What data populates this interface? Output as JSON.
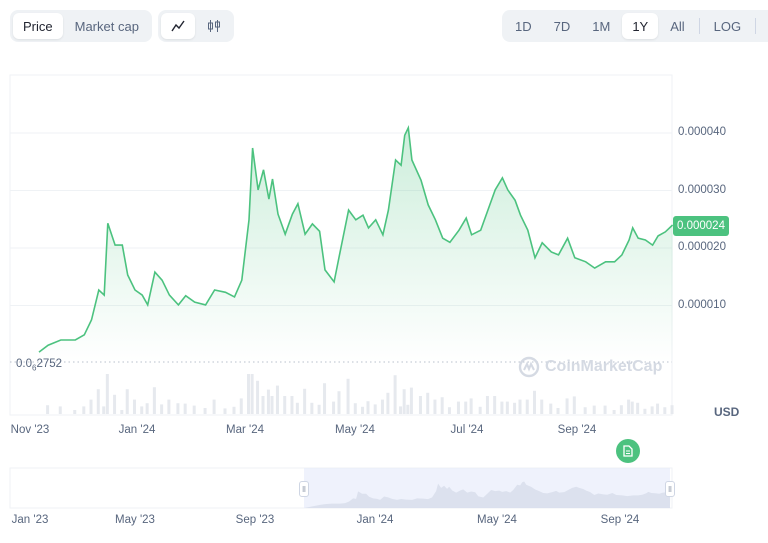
{
  "toolbar": {
    "metric_tabs": [
      {
        "label": "Price",
        "active": true
      },
      {
        "label": "Market cap",
        "active": false
      }
    ],
    "chart_type": [
      {
        "icon": "line-chart-icon",
        "active": true
      },
      {
        "icon": "candlestick-icon",
        "active": false
      }
    ],
    "ranges": [
      {
        "label": "1D"
      },
      {
        "label": "7D"
      },
      {
        "label": "1M"
      },
      {
        "label": "1Y",
        "active": true
      },
      {
        "label": "All"
      }
    ],
    "log_label": "LOG",
    "more_label": "···"
  },
  "colors": {
    "line": "#4cc27f",
    "accent": "#4cc27f",
    "navigator_selection": "#e8ecfb"
  },
  "watermark": "CoinMarketCap",
  "current_price": "0.000024",
  "min_price_label": {
    "prefix": "0.0",
    "zeros": "6",
    "digits": "2752"
  },
  "currency": "USD",
  "chart_data": {
    "type": "area",
    "yticks": [
      "0.000010",
      "0.000020",
      "0.000030",
      "0.000040"
    ],
    "ytick_values": [
      1e-05,
      2e-05,
      3e-05,
      4e-05
    ],
    "xticks": [
      "Nov '23",
      "Jan '24",
      "Mar '24",
      "May '24",
      "Jul '24",
      "Sep '24"
    ],
    "navigator_xticks": [
      "Jan '23",
      "May '23",
      "Sep '23",
      "Jan '24",
      "May '24",
      "Sep '24"
    ],
    "grid": true,
    "ylim": [
      0,
      5e-05
    ],
    "points": [
      [
        "2023-11-06",
        1.9e-06
      ],
      [
        "2023-11-11",
        3.1e-06
      ],
      [
        "2023-11-18",
        4e-06
      ],
      [
        "2023-11-26",
        4e-06
      ],
      [
        "2023-12-01",
        4.9e-06
      ],
      [
        "2023-12-05",
        7.5e-06
      ],
      [
        "2023-12-09",
        1.27e-05
      ],
      [
        "2023-12-12",
        1.18e-05
      ],
      [
        "2023-12-14",
        2.43e-05
      ],
      [
        "2023-12-18",
        2.05e-05
      ],
      [
        "2023-12-22",
        2.05e-05
      ],
      [
        "2023-12-25",
        1.53e-05
      ],
      [
        "2023-12-29",
        1.27e-05
      ],
      [
        "2024-01-02",
        1.18e-05
      ],
      [
        "2024-01-05",
        1.01e-05
      ],
      [
        "2024-01-09",
        1.58e-05
      ],
      [
        "2024-01-13",
        1.44e-05
      ],
      [
        "2024-01-17",
        1.18e-05
      ],
      [
        "2024-01-22",
        1.01e-05
      ],
      [
        "2024-01-26",
        1.17e-05
      ],
      [
        "2024-01-31",
        1.06e-05
      ],
      [
        "2024-02-06",
        1.01e-05
      ],
      [
        "2024-02-11",
        1.27e-05
      ],
      [
        "2024-02-17",
        1.23e-05
      ],
      [
        "2024-02-22",
        1.15e-05
      ],
      [
        "2024-02-26",
        1.44e-05
      ],
      [
        "2024-03-01",
        2.49e-05
      ],
      [
        "2024-03-03",
        3.74e-05
      ],
      [
        "2024-03-06",
        3.01e-05
      ],
      [
        "2024-03-09",
        3.36e-05
      ],
      [
        "2024-03-12",
        2.85e-05
      ],
      [
        "2024-03-14",
        3.2e-05
      ],
      [
        "2024-03-17",
        2.59e-05
      ],
      [
        "2024-03-21",
        2.24e-05
      ],
      [
        "2024-03-25",
        2.59e-05
      ],
      [
        "2024-03-28",
        2.77e-05
      ],
      [
        "2024-04-01",
        2.24e-05
      ],
      [
        "2024-04-05",
        2.42e-05
      ],
      [
        "2024-04-09",
        2.29e-05
      ],
      [
        "2024-04-12",
        1.62e-05
      ],
      [
        "2024-04-17",
        1.41e-05
      ],
      [
        "2024-04-20",
        1.88e-05
      ],
      [
        "2024-04-25",
        2.66e-05
      ],
      [
        "2024-04-29",
        2.49e-05
      ],
      [
        "2024-05-03",
        2.57e-05
      ],
      [
        "2024-05-06",
        2.35e-05
      ],
      [
        "2024-05-10",
        2.49e-05
      ],
      [
        "2024-05-14",
        2.23e-05
      ],
      [
        "2024-05-17",
        2.66e-05
      ],
      [
        "2024-05-21",
        3.53e-05
      ],
      [
        "2024-05-24",
        3.44e-05
      ],
      [
        "2024-05-26",
        3.96e-05
      ],
      [
        "2024-05-28",
        4.09e-05
      ],
      [
        "2024-05-30",
        3.53e-05
      ],
      [
        "2024-06-04",
        3.18e-05
      ],
      [
        "2024-06-08",
        2.75e-05
      ],
      [
        "2024-06-12",
        2.49e-05
      ],
      [
        "2024-06-16",
        2.17e-05
      ],
      [
        "2024-06-20",
        2.1e-05
      ],
      [
        "2024-06-25",
        2.31e-05
      ],
      [
        "2024-06-29",
        2.52e-05
      ],
      [
        "2024-07-02",
        2.23e-05
      ],
      [
        "2024-07-07",
        2.31e-05
      ],
      [
        "2024-07-11",
        2.66e-05
      ],
      [
        "2024-07-15",
        3.01e-05
      ],
      [
        "2024-07-19",
        3.22e-05
      ],
      [
        "2024-07-22",
        3.01e-05
      ],
      [
        "2024-07-26",
        2.83e-05
      ],
      [
        "2024-07-29",
        2.57e-05
      ],
      [
        "2024-08-02",
        2.31e-05
      ],
      [
        "2024-08-06",
        1.83e-05
      ],
      [
        "2024-08-10",
        2.09e-05
      ],
      [
        "2024-08-15",
        1.93e-05
      ],
      [
        "2024-08-19",
        1.88e-05
      ],
      [
        "2024-08-24",
        2.17e-05
      ],
      [
        "2024-08-28",
        1.83e-05
      ],
      [
        "2024-09-03",
        1.76e-05
      ],
      [
        "2024-09-08",
        1.65e-05
      ],
      [
        "2024-09-14",
        1.76e-05
      ],
      [
        "2024-09-19",
        1.76e-05
      ],
      [
        "2024-09-23",
        1.88e-05
      ],
      [
        "2024-09-27",
        2.14e-05
      ],
      [
        "2024-09-29",
        2.35e-05
      ],
      [
        "2024-10-02",
        2.17e-05
      ],
      [
        "2024-10-06",
        2.14e-05
      ],
      [
        "2024-10-10",
        2.05e-05
      ],
      [
        "2024-10-13",
        2.21e-05
      ],
      [
        "2024-10-17",
        2.28e-05
      ],
      [
        "2024-10-21",
        2.4e-05
      ]
    ]
  }
}
